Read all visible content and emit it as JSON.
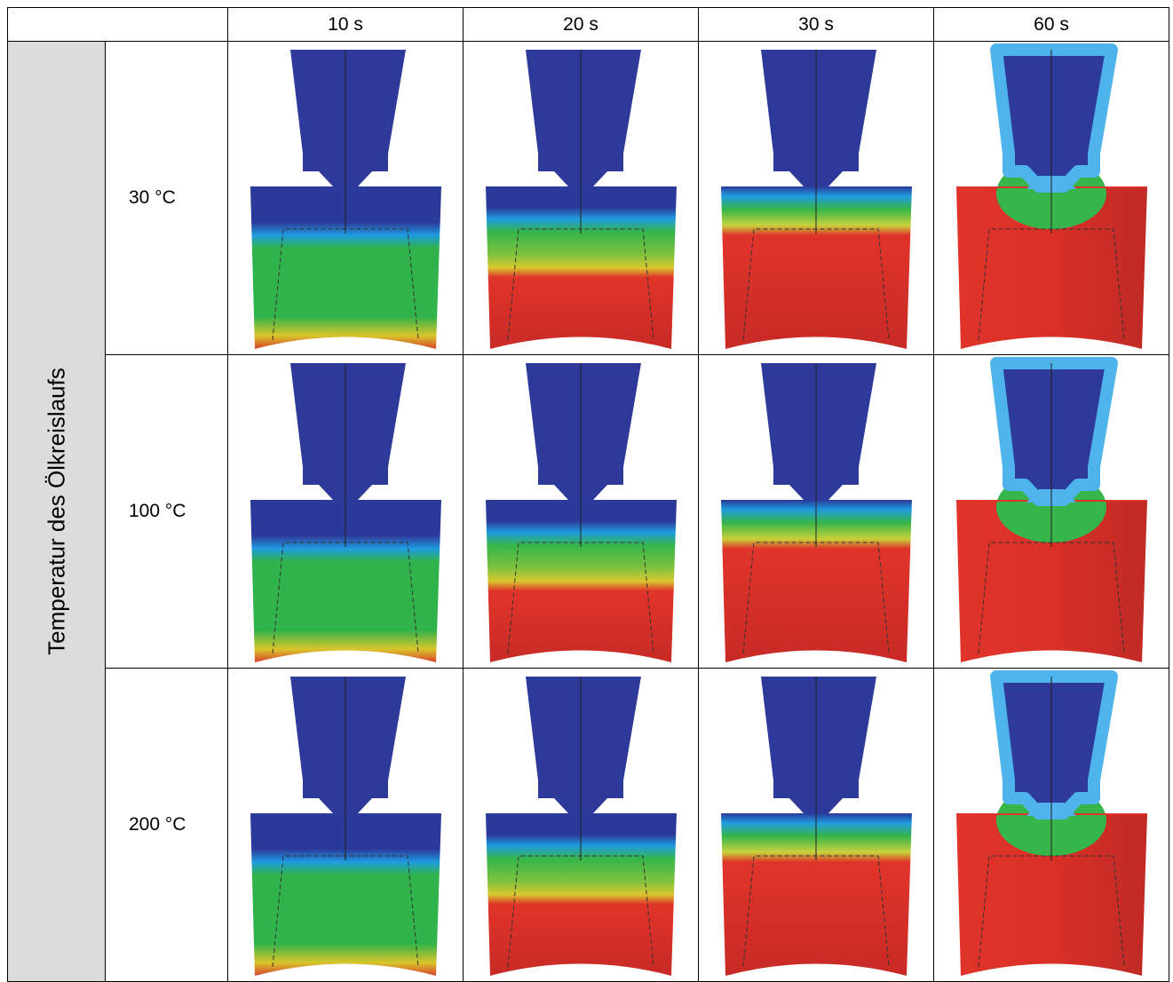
{
  "header": {
    "columns": [
      "10 s",
      "20 s",
      "30 s",
      "60 s"
    ]
  },
  "row_group_label": "Temperatur des Ölkreislaufs",
  "rows": [
    {
      "label": "30 °C"
    },
    {
      "label": "100 °C"
    },
    {
      "label": "200 °C"
    }
  ]
}
